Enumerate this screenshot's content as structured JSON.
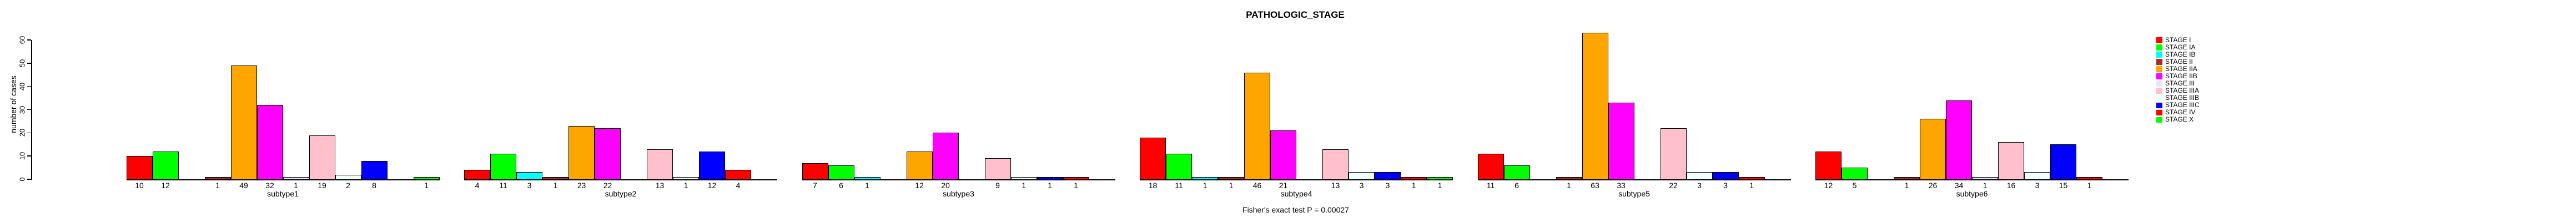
{
  "title": "PATHOLOGIC_STAGE",
  "y_axis": {
    "label": "number of cases",
    "ticks": [
      0,
      10,
      20,
      30,
      40,
      50,
      60
    ]
  },
  "footer": "Fisher's exact test P = 0.00027",
  "chart_data": {
    "type": "bar",
    "title": "PATHOLOGIC_STAGE",
    "xlabel": "",
    "ylabel": "number of cases",
    "ylim": [
      0,
      60
    ],
    "y_ticks": [
      0,
      10,
      20,
      30,
      40,
      50,
      60
    ],
    "grid": false,
    "legend_position": "right",
    "bar_labels": "value shown under each nonzero bar",
    "stages": [
      {
        "label": "STAGE I",
        "color": "#FF0000"
      },
      {
        "label": "STAGE IA",
        "color": "#00FF00"
      },
      {
        "label": "STAGE IB",
        "color": "#00FFFF"
      },
      {
        "label": "STAGE II",
        "color": "#A52A2A"
      },
      {
        "label": "STAGE IIA",
        "color": "#FFA500"
      },
      {
        "label": "STAGE IIB",
        "color": "#FF00FF"
      },
      {
        "label": "STAGE III",
        "color": "#E6E6FA"
      },
      {
        "label": "STAGE IIIA",
        "color": "#FFC0CB"
      },
      {
        "label": "STAGE IIIB",
        "color": "#F0FFFF"
      },
      {
        "label": "STAGE IIIC",
        "color": "#0000FF"
      },
      {
        "label": "STAGE IV",
        "color": "#FF0000"
      },
      {
        "label": "STAGE X",
        "color": "#00FF00"
      }
    ],
    "groups": [
      {
        "label": "subtype1",
        "values": [
          10,
          12,
          0,
          1,
          49,
          32,
          1,
          19,
          2,
          8,
          0,
          1
        ]
      },
      {
        "label": "subtype2",
        "values": [
          4,
          11,
          3,
          1,
          23,
          22,
          0,
          13,
          1,
          12,
          4,
          0
        ]
      },
      {
        "label": "subtype3",
        "values": [
          7,
          6,
          1,
          0,
          12,
          20,
          0,
          9,
          1,
          1,
          1,
          0
        ]
      },
      {
        "label": "subtype4",
        "values": [
          18,
          11,
          1,
          1,
          46,
          21,
          0,
          13,
          3,
          3,
          1,
          1
        ]
      },
      {
        "label": "subtype5",
        "values": [
          11,
          6,
          0,
          1,
          63,
          33,
          0,
          22,
          3,
          3,
          1,
          0
        ]
      },
      {
        "label": "subtype6",
        "values": [
          12,
          5,
          0,
          1,
          26,
          34,
          1,
          16,
          3,
          15,
          1,
          0
        ]
      }
    ],
    "annotation": "Fisher's exact test P = 0.00027"
  }
}
